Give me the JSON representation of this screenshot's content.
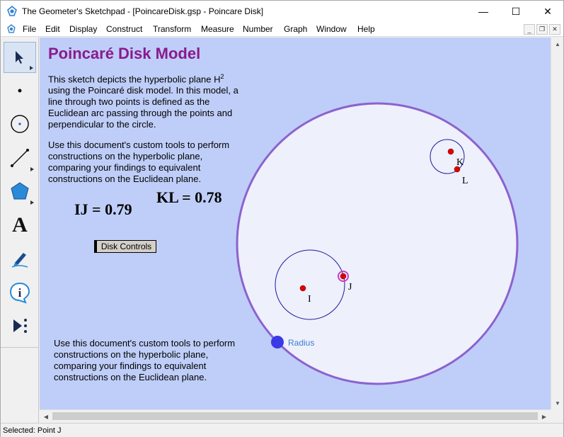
{
  "window": {
    "title": "The Geometer's Sketchpad - [PoincareDisk.gsp - Poincare Disk]",
    "minimize_glyph": "—",
    "maximize_glyph": "☐",
    "close_glyph": "✕"
  },
  "menubar": {
    "items": [
      "File",
      "Edit",
      "Display",
      "Construct",
      "Transform",
      "Measure",
      "Number",
      "Graph",
      "Window",
      "Help"
    ],
    "mdi_minimize": "_",
    "mdi_restore": "❐",
    "mdi_close": "✕"
  },
  "toolbox": {
    "tools": [
      {
        "name": "selection-arrow-tool",
        "icon": "arrow-icon",
        "has_menu": true
      },
      {
        "name": "point-tool",
        "icon": "point-icon",
        "has_menu": false
      },
      {
        "name": "compass-tool",
        "icon": "compass-icon",
        "has_menu": false
      },
      {
        "name": "straightedge-tool",
        "icon": "segment-icon",
        "has_menu": true
      },
      {
        "name": "polygon-tool",
        "icon": "polygon-icon",
        "has_menu": true
      },
      {
        "name": "text-tool",
        "icon": "text-icon",
        "has_menu": false
      },
      {
        "name": "marker-tool",
        "icon": "marker-icon",
        "has_menu": false
      },
      {
        "name": "information-tool",
        "icon": "info-icon",
        "has_menu": false
      },
      {
        "name": "custom-tools",
        "icon": "custom-tools-icon",
        "has_menu": false
      }
    ],
    "text_tool_glyph": "A",
    "info_glyph": "i"
  },
  "document": {
    "title": "Poincaré Disk Model",
    "intro_line1_pre": "This sketch depicts the hyperbolic plane H",
    "intro_sup": "2",
    "intro_line2": "using the Poincaré disk model. In this model, a",
    "intro_line3": "line through two points is defined as the",
    "intro_line4": "Euclidean arc passing through the points and",
    "intro_line5": "perpendicular to the circle.",
    "custom_text_lines": [
      "Use this document's custom tools to perform",
      "constructions on the hyperbolic plane,",
      "comparing your findings to equivalent",
      "constructions on the Euclidean plane."
    ],
    "custom_text_bottom_lines": [
      "Use this document's custom tools to perform",
      "constructions on the hyperbolic plane,",
      "comparing your findings to equivalent",
      "constructions on the Euclidean plane."
    ],
    "measure_ij": "IJ = 0.79",
    "measure_kl": "KL = 0.78",
    "disk_controls_label": "Disk Controls"
  },
  "geometry": {
    "disk_fill": "#eef0fb",
    "disk_stroke": "#8c62cf",
    "point_color": "#e00000",
    "circle_stroke": "#1a1aa0",
    "selected_ring": "#c83cc8",
    "radius_point_color": "#3a3ae8",
    "points": {
      "I": "I",
      "J": "J",
      "K": "K",
      "L": "L"
    },
    "radius_label": "Radius"
  },
  "status": {
    "text": "Selected: Point J"
  },
  "colors": {
    "canvas_bg": "#bfcef8",
    "title_purple": "#8a1a8e",
    "active_tool_bg": "#d8e4f4"
  }
}
